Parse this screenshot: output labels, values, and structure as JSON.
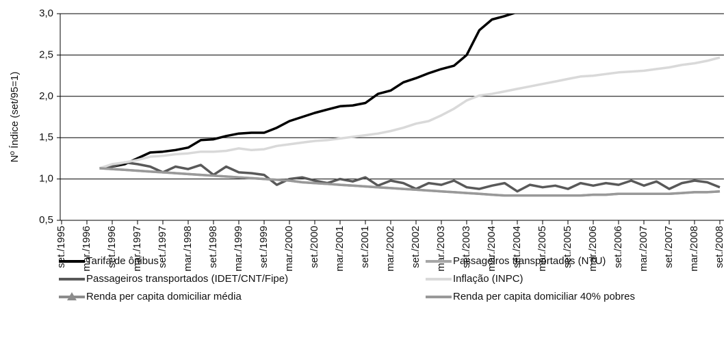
{
  "chart_data": {
    "type": "line",
    "ylabel": "Nº Índice (set/95=1)",
    "categories": [
      "set./1995",
      null,
      "mar./1996",
      null,
      "set./1996",
      null,
      "mar./1997",
      null,
      "set./1997",
      null,
      "mar./1998",
      null,
      "set./1998",
      null,
      "mar./1999",
      null,
      "set./1999",
      null,
      "mar./2000",
      null,
      "set./2000",
      null,
      "mar./2001",
      null,
      "set./2001",
      null,
      "mar./2002",
      null,
      "set./2002",
      null,
      "mar./2003",
      null,
      "set./2003",
      null,
      "mar./2004",
      null,
      "set./2004",
      null,
      "mar./2005",
      null,
      "set./2005",
      null,
      "mar./2006",
      null,
      "set./2006",
      null,
      "mar./2007",
      null,
      "set./2007",
      null,
      "mar./2008",
      null,
      "set./2008"
    ],
    "series": [
      {
        "name": "Tarifa de ônibus",
        "color": "#000000",
        "width": 3.5,
        "values": [
          null,
          null,
          null,
          1.13,
          1.15,
          1.18,
          1.25,
          1.32,
          1.33,
          1.35,
          1.38,
          1.47,
          1.48,
          1.52,
          1.55,
          1.56,
          1.56,
          1.62,
          1.7,
          1.75,
          1.8,
          1.84,
          1.88,
          1.89,
          1.92,
          2.03,
          2.07,
          2.17,
          2.22,
          2.28,
          2.33,
          2.37,
          2.5,
          2.8,
          2.93,
          2.97,
          3.02,
          null,
          null,
          null,
          null,
          null,
          null,
          null,
          null,
          null,
          null,
          null,
          null,
          null,
          null,
          null,
          null
        ]
      },
      {
        "name": "Passageiros transportados (NTU)",
        "color": "#a6a6a6",
        "width": 3.5,
        "values": [
          null,
          null,
          null,
          1.13,
          1.12,
          1.11,
          1.1,
          1.09,
          1.08,
          1.07,
          1.06,
          1.05,
          1.04,
          1.03,
          1.02,
          1.01,
          1.0,
          0.99,
          0.98,
          0.96,
          0.95,
          0.94,
          0.93,
          0.92,
          0.91,
          0.9,
          0.89,
          0.88,
          0.87,
          0.86,
          0.85,
          0.84,
          0.83,
          0.82,
          0.81,
          0.8,
          0.8,
          0.8,
          0.8,
          0.8,
          0.8,
          0.8,
          0.81,
          0.81,
          0.82,
          0.82,
          0.82,
          0.82,
          0.82,
          0.83,
          0.84,
          0.84,
          0.85
        ]
      },
      {
        "name": "Passageiros transportados (IDET/CNT/Fipe)",
        "color": "#595959",
        "width": 3.5,
        "values": [
          null,
          null,
          null,
          1.13,
          1.15,
          1.2,
          1.18,
          1.15,
          1.08,
          1.15,
          1.12,
          1.17,
          1.05,
          1.15,
          1.08,
          1.07,
          1.05,
          0.93,
          1.0,
          1.02,
          0.98,
          0.95,
          1.0,
          0.97,
          1.02,
          0.92,
          0.98,
          0.95,
          0.88,
          0.95,
          0.93,
          0.98,
          0.9,
          0.88,
          0.92,
          0.95,
          0.85,
          0.93,
          0.9,
          0.92,
          0.88,
          0.95,
          0.92,
          0.95,
          0.93,
          0.98,
          0.92,
          0.97,
          0.88,
          0.95,
          0.98,
          0.96,
          0.9
        ]
      },
      {
        "name": "Inflação (INPC)",
        "color": "#d9d9d9",
        "width": 3.5,
        "values": [
          null,
          null,
          null,
          1.13,
          1.18,
          1.2,
          1.23,
          1.27,
          1.28,
          1.3,
          1.31,
          1.33,
          1.33,
          1.34,
          1.37,
          1.35,
          1.36,
          1.4,
          1.42,
          1.44,
          1.46,
          1.47,
          1.49,
          1.51,
          1.53,
          1.55,
          1.58,
          1.62,
          1.67,
          1.7,
          1.77,
          1.85,
          1.95,
          2.01,
          2.03,
          2.06,
          2.09,
          2.12,
          2.15,
          2.18,
          2.21,
          2.24,
          2.25,
          2.27,
          2.29,
          2.3,
          2.31,
          2.33,
          2.35,
          2.38,
          2.4,
          2.43,
          2.47
        ]
      },
      {
        "name": "Renda per capita domiciliar média",
        "color": "#8c8c8c",
        "width": 2,
        "marker": "triangle",
        "values": [
          null,
          null,
          null,
          1.13,
          1.12,
          1.11,
          1.1,
          1.09,
          1.08,
          1.07,
          1.06,
          1.05,
          1.04,
          1.03,
          1.02,
          1.01,
          1.0,
          0.99,
          0.98,
          0.96,
          0.95,
          0.94,
          0.93,
          0.92,
          0.91,
          0.9,
          0.89,
          0.88,
          0.87,
          0.86,
          0.85,
          0.84,
          0.83,
          0.82,
          0.81,
          0.8,
          0.8,
          0.8,
          0.8,
          0.8,
          0.8,
          0.8,
          0.81,
          0.81,
          0.82,
          0.82,
          0.82,
          0.82,
          0.82,
          0.83,
          0.84,
          0.84,
          0.85
        ]
      },
      {
        "name": "Renda per capita domiciliar 40% pobres",
        "color": "#999999",
        "width": 3.5,
        "values": [
          null,
          null,
          null,
          1.13,
          1.12,
          1.11,
          1.1,
          1.09,
          1.08,
          1.07,
          1.06,
          1.05,
          1.04,
          1.03,
          1.02,
          1.01,
          1.0,
          0.99,
          0.98,
          0.96,
          0.95,
          0.94,
          0.93,
          0.92,
          0.91,
          0.9,
          0.89,
          0.88,
          0.87,
          0.86,
          0.85,
          0.84,
          0.83,
          0.82,
          0.81,
          0.8,
          0.8,
          0.8,
          0.8,
          0.8,
          0.8,
          0.8,
          0.81,
          0.81,
          0.82,
          0.82,
          0.82,
          0.82,
          0.82,
          0.83,
          0.84,
          0.84,
          0.85
        ]
      }
    ],
    "ylim": [
      0.5,
      3.0
    ],
    "yticks": [
      {
        "value": 0.5,
        "label": "0,5"
      },
      {
        "value": 1.0,
        "label": "1,0"
      },
      {
        "value": 1.5,
        "label": "1,5"
      },
      {
        "value": 2.0,
        "label": "2,0"
      },
      {
        "value": 2.5,
        "label": "2,5"
      },
      {
        "value": 3.0,
        "label": "3,0"
      }
    ],
    "grid": true
  }
}
